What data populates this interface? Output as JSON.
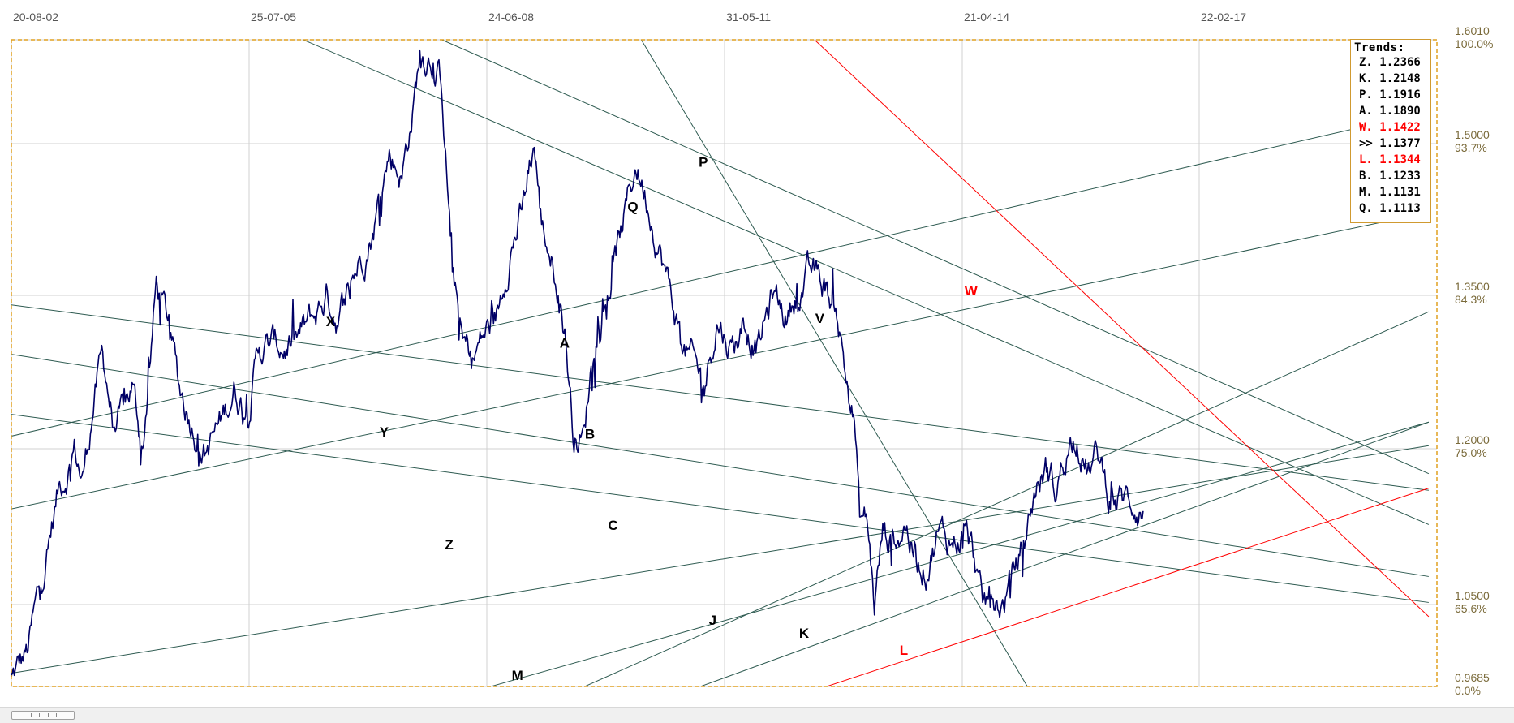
{
  "chart_data": {
    "type": "line",
    "x_ticks": [
      "20-08-02",
      "25-07-05",
      "24-06-08",
      "31-05-11",
      "21-04-14",
      "22-02-17"
    ],
    "y_ticks": [
      {
        "value": "1.6010",
        "pct": "100.0%"
      },
      {
        "value": "1.5000",
        "pct": "93.7%"
      },
      {
        "value": "1.3500",
        "pct": "84.3%"
      },
      {
        "value": "1.2000",
        "pct": "75.0%"
      },
      {
        "value": "1.0500",
        "pct": "65.6%"
      },
      {
        "value": "0.9685",
        "pct": "0.0%"
      }
    ],
    "ylim": [
      0.9685,
      1.601
    ],
    "colors": {
      "price": "#000066",
      "trend": "#2d5a50",
      "trend_red": "#ff0000",
      "frame": "#e0a020",
      "grid": "#d0d0d0"
    },
    "price_keypoints": [
      [
        0.0,
        0.975
      ],
      [
        0.015,
        1.0
      ],
      [
        0.03,
        1.08
      ],
      [
        0.045,
        1.16
      ],
      [
        0.06,
        1.2
      ],
      [
        0.068,
        1.17
      ],
      [
        0.078,
        1.245
      ],
      [
        0.087,
        1.29
      ],
      [
        0.1,
        1.21
      ],
      [
        0.115,
        1.26
      ],
      [
        0.125,
        1.2
      ],
      [
        0.138,
        1.36
      ],
      [
        0.15,
        1.32
      ],
      [
        0.16,
        1.26
      ],
      [
        0.17,
        1.235
      ],
      [
        0.185,
        1.2
      ],
      [
        0.2,
        1.225
      ],
      [
        0.212,
        1.26
      ],
      [
        0.225,
        1.24
      ],
      [
        0.236,
        1.3
      ],
      [
        0.25,
        1.3
      ],
      [
        0.27,
        1.3
      ],
      [
        0.29,
        1.33
      ],
      [
        0.3,
        1.35
      ],
      [
        0.312,
        1.33
      ],
      [
        0.33,
        1.38
      ],
      [
        0.345,
        1.42
      ],
      [
        0.36,
        1.49
      ],
      [
        0.372,
        1.47
      ],
      [
        0.382,
        1.53
      ],
      [
        0.39,
        1.59
      ],
      [
        0.4,
        1.59
      ],
      [
        0.41,
        1.56
      ],
      [
        0.42,
        1.38
      ],
      [
        0.43,
        1.3
      ],
      [
        0.44,
        1.29
      ],
      [
        0.45,
        1.31
      ],
      [
        0.463,
        1.33
      ],
      [
        0.475,
        1.4
      ],
      [
        0.487,
        1.43
      ],
      [
        0.498,
        1.5
      ],
      [
        0.505,
        1.42
      ],
      [
        0.52,
        1.37
      ],
      [
        0.528,
        1.31
      ],
      [
        0.535,
        1.22
      ],
      [
        0.545,
        1.21
      ],
      [
        0.555,
        1.31
      ],
      [
        0.565,
        1.34
      ],
      [
        0.575,
        1.38
      ],
      [
        0.585,
        1.43
      ],
      [
        0.595,
        1.48
      ],
      [
        0.605,
        1.45
      ],
      [
        0.615,
        1.41
      ],
      [
        0.628,
        1.35
      ],
      [
        0.64,
        1.3
      ],
      [
        0.65,
        1.28
      ],
      [
        0.66,
        1.26
      ],
      [
        0.672,
        1.33
      ],
      [
        0.685,
        1.3
      ],
      [
        0.698,
        1.32
      ],
      [
        0.712,
        1.3
      ],
      [
        0.725,
        1.35
      ],
      [
        0.738,
        1.33
      ],
      [
        0.75,
        1.36
      ],
      [
        0.762,
        1.37
      ],
      [
        0.775,
        1.36
      ],
      [
        0.787,
        1.33
      ],
      [
        0.795,
        1.27
      ],
      [
        0.803,
        1.23
      ],
      [
        0.808,
        1.13
      ],
      [
        0.815,
        1.13
      ],
      [
        0.822,
        1.05
      ],
      [
        0.83,
        1.12
      ],
      [
        0.84,
        1.11
      ],
      [
        0.852,
        1.13
      ],
      [
        0.862,
        1.09
      ],
      [
        0.872,
        1.09
      ],
      [
        0.882,
        1.12
      ],
      [
        0.895,
        1.11
      ],
      [
        0.908,
        1.12
      ],
      [
        0.918,
        1.09
      ],
      [
        0.925,
        1.04
      ],
      [
        0.935,
        1.06
      ],
      [
        0.945,
        1.05
      ],
      [
        0.955,
        1.08
      ],
      [
        0.965,
        1.11
      ],
      [
        0.975,
        1.16
      ],
      [
        0.985,
        1.18
      ],
      [
        0.995,
        1.16
      ],
      [
        1.005,
        1.2
      ],
      [
        1.015,
        1.22
      ],
      [
        1.025,
        1.18
      ],
      [
        1.035,
        1.19
      ],
      [
        1.045,
        1.16
      ],
      [
        1.052,
        1.15
      ],
      [
        1.06,
        1.15
      ],
      [
        1.07,
        1.15
      ],
      [
        1.078,
        1.14
      ]
    ],
    "trend_lines": [
      {
        "label": "X",
        "color": "trend",
        "x1": -0.01,
        "y1": 1.342,
        "x2": 1.35,
        "y2": 1.16
      },
      {
        "label": "Y",
        "color": "trend",
        "x1": -0.01,
        "y1": 1.294,
        "x2": 1.35,
        "y2": 1.077
      },
      {
        "label": "Z",
        "color": "trend",
        "x1": -0.01,
        "y1": 1.235,
        "x2": 1.35,
        "y2": 1.052
      },
      {
        "label": "A",
        "color": "trend",
        "x1": -0.01,
        "y1": 1.21,
        "x2": 1.35,
        "y2": 1.531
      },
      {
        "label": "B",
        "color": "trend",
        "x1": -0.01,
        "y1": 1.14,
        "x2": 1.35,
        "y2": 1.432
      },
      {
        "label": "C",
        "color": "trend",
        "x1": -0.01,
        "y1": 0.98,
        "x2": 1.35,
        "y2": 1.203
      },
      {
        "label": "P",
        "color": "trend",
        "x1": 0.278,
        "y1": 1.601,
        "x2": 1.35,
        "y2": 1.127
      },
      {
        "label": "Q",
        "color": "trend",
        "x1": 0.41,
        "y1": 1.601,
        "x2": 1.35,
        "y2": 1.176
      },
      {
        "label": "V",
        "color": "trend",
        "x1": 0.6,
        "y1": 1.601,
        "x2": 0.968,
        "y2": 0.968
      },
      {
        "label": "M",
        "color": "trend",
        "x1": 0.455,
        "y1": 0.968,
        "x2": 1.35,
        "y2": 1.226
      },
      {
        "label": "J",
        "color": "trend",
        "x1": 0.545,
        "y1": 0.968,
        "x2": 1.35,
        "y2": 1.334
      },
      {
        "label": "K",
        "color": "trend",
        "x1": 0.655,
        "y1": 0.968,
        "x2": 1.35,
        "y2": 1.226
      },
      {
        "label": "W",
        "color": "trend_red",
        "x1": 0.765,
        "y1": 1.601,
        "x2": 1.35,
        "y2": 1.038
      },
      {
        "label": "L",
        "color": "trend_red",
        "x1": 0.775,
        "y1": 0.968,
        "x2": 1.35,
        "y2": 1.162
      }
    ],
    "trend_label_points": [
      {
        "label": "X",
        "x": 0.304,
        "y": 1.32
      },
      {
        "label": "Y",
        "x": 0.355,
        "y": 1.212
      },
      {
        "label": "Z",
        "x": 0.417,
        "y": 1.103
      },
      {
        "label": "A",
        "x": 0.527,
        "y": 1.299
      },
      {
        "label": "B",
        "x": 0.551,
        "y": 1.21
      },
      {
        "label": "C",
        "x": 0.573,
        "y": 1.122
      },
      {
        "label": "P",
        "x": 0.659,
        "y": 1.477
      },
      {
        "label": "Q",
        "x": 0.592,
        "y": 1.433
      },
      {
        "label": "V",
        "x": 0.77,
        "y": 1.323
      },
      {
        "label": "M",
        "x": 0.482,
        "y": 0.975
      },
      {
        "label": "J",
        "x": 0.668,
        "y": 1.03
      },
      {
        "label": "K",
        "x": 0.755,
        "y": 1.017
      },
      {
        "label": "W",
        "x": 0.914,
        "y": 1.35
      },
      {
        "label": "L",
        "x": 0.85,
        "y": 1.0
      }
    ]
  },
  "legend": {
    "title": "Trends:",
    "items": [
      {
        "text": "Z. 1.2366",
        "color": "#000000"
      },
      {
        "text": "K. 1.2148",
        "color": "#000000"
      },
      {
        "text": "P. 1.1916",
        "color": "#000000"
      },
      {
        "text": "A. 1.1890",
        "color": "#000000"
      },
      {
        "text": "W. 1.1422",
        "color": "#ff0000"
      },
      {
        "text": ">> 1.1377",
        "color": "#000000"
      },
      {
        "text": "L. 1.1344",
        "color": "#ff0000"
      },
      {
        "text": "B. 1.1233",
        "color": "#000000"
      },
      {
        "text": "M. 1.1131",
        "color": "#000000"
      },
      {
        "text": "Q. 1.1113",
        "color": "#000000"
      }
    ]
  }
}
